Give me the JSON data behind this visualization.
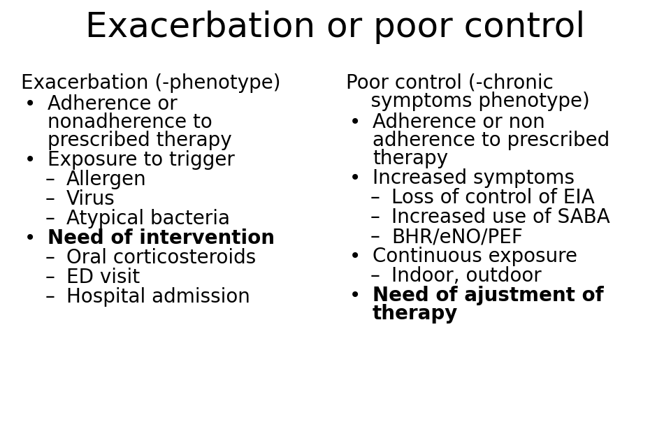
{
  "title": "Exacerbation or poor control",
  "title_fontsize": 36,
  "background_color": "#ffffff",
  "text_color": "#000000",
  "left_header": "Exacerbation (-phenotype)",
  "left_items": [
    {
      "text": "Adherence or\nnonadherence to\nprescribed therapy",
      "level": 1,
      "bold": false
    },
    {
      "text": "Exposure to trigger",
      "level": 1,
      "bold": false
    },
    {
      "text": "Allergen",
      "level": 2,
      "bold": false
    },
    {
      "text": "Virus",
      "level": 2,
      "bold": false
    },
    {
      "text": "Atypical bacteria",
      "level": 2,
      "bold": false
    },
    {
      "text": "Need of intervention",
      "level": 1,
      "bold": true
    },
    {
      "text": "Oral corticosteroids",
      "level": 2,
      "bold": false
    },
    {
      "text": "ED visit",
      "level": 2,
      "bold": false
    },
    {
      "text": "Hospital admission",
      "level": 2,
      "bold": false
    }
  ],
  "right_header": "Poor control (-chronic\n    symptoms phenotype)",
  "right_items": [
    {
      "text": "Adherence or non\nadherence to prescribed\ntherapy",
      "level": 1,
      "bold": false
    },
    {
      "text": "Increased symptoms",
      "level": 1,
      "bold": false
    },
    {
      "text": "Loss of control of EIA",
      "level": 2,
      "bold": false
    },
    {
      "text": "Increased use of SABA",
      "level": 2,
      "bold": false
    },
    {
      "text": "BHR/eNO/PEF",
      "level": 2,
      "bold": false
    },
    {
      "text": "Continuous exposure",
      "level": 1,
      "bold": false
    },
    {
      "text": "Indoor, outdoor",
      "level": 2,
      "bold": false
    },
    {
      "text": "Need of ajustment of\ntherapy",
      "level": 1,
      "bold": true
    }
  ],
  "header_fontsize": 20,
  "item_fontsize": 20,
  "bullet_l1": "•",
  "bullet_l2": "–",
  "fig_width": 9.6,
  "fig_height": 6.34,
  "dpi": 100
}
